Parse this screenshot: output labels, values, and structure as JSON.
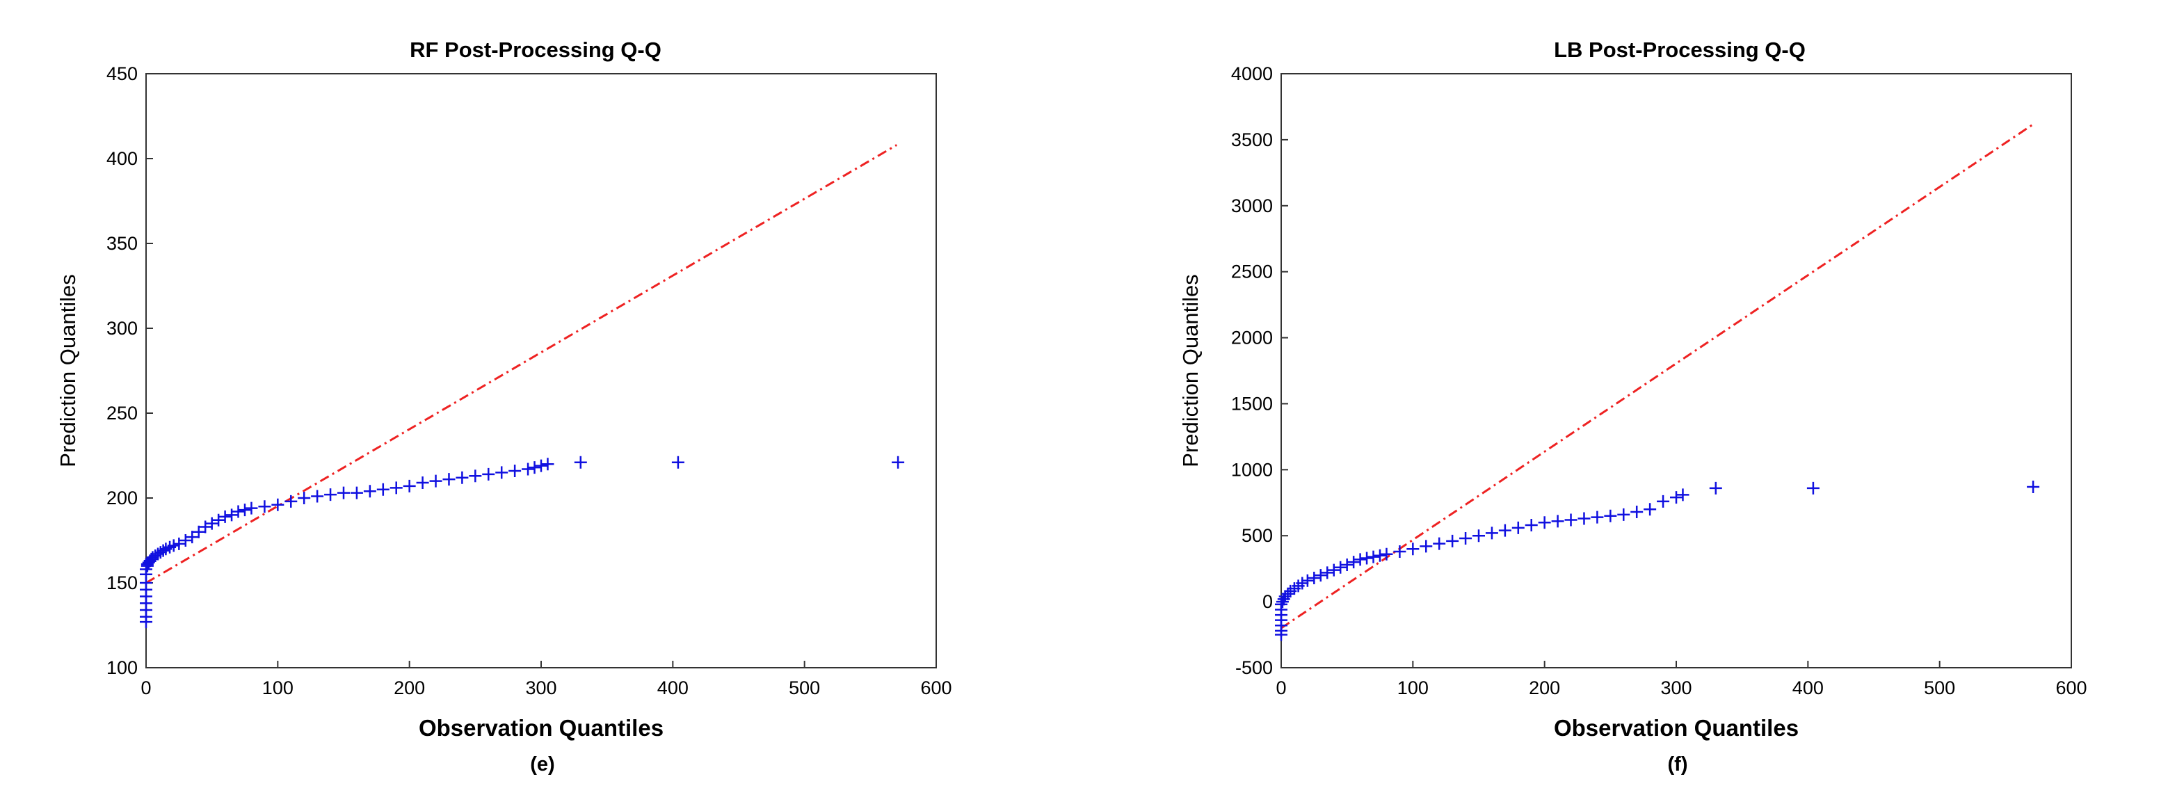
{
  "chart_data": [
    {
      "type": "scatter",
      "title": "RF Post-Processing Q-Q",
      "xlabel": "Observation Quantiles",
      "ylabel": "Prediction Quantiles",
      "caption": "(e)",
      "xlim": [
        0,
        600
      ],
      "ylim": [
        100,
        450
      ],
      "xticks": [
        0,
        100,
        200,
        300,
        400,
        500,
        600
      ],
      "yticks": [
        100,
        150,
        200,
        250,
        300,
        350,
        400,
        450
      ],
      "grid": false,
      "marker": "+",
      "marker_color": "#1010e0",
      "reference_line": {
        "style": "dash-dot",
        "color": "#ee2222",
        "from": [
          0,
          150
        ],
        "to": [
          570,
          408
        ]
      },
      "series": [
        {
          "x": [
            0,
            0,
            0,
            0,
            0,
            0,
            0,
            0,
            0,
            1,
            1,
            2,
            3,
            4,
            5,
            7,
            9,
            11,
            13,
            15,
            18,
            21,
            25,
            30,
            35,
            40,
            45,
            50,
            55,
            60,
            65,
            70,
            75,
            80,
            90,
            100,
            110,
            120,
            130,
            140,
            150,
            160,
            170,
            180,
            190,
            200,
            210,
            220,
            230,
            240,
            250,
            260,
            270,
            280,
            290,
            295,
            300,
            305,
            330,
            404,
            571
          ],
          "y": [
            127,
            130,
            134,
            138,
            142,
            146,
            150,
            155,
            158,
            160,
            161,
            162,
            163,
            164,
            165,
            166,
            167,
            168,
            169,
            170,
            171,
            172,
            173,
            175,
            177,
            180,
            183,
            185,
            187,
            189,
            190,
            192,
            193,
            194,
            195,
            196,
            198,
            200,
            201,
            202,
            203,
            203,
            204,
            205,
            206,
            207,
            209,
            210,
            211,
            212,
            213,
            214,
            215,
            216,
            217,
            218,
            219,
            220,
            221,
            221,
            221
          ]
        }
      ]
    },
    {
      "type": "scatter",
      "title": "LB Post-Processing Q-Q",
      "xlabel": "Observation Quantiles",
      "ylabel": "Prediction Quantiles",
      "caption": "(f)",
      "xlim": [
        0,
        600
      ],
      "ylim": [
        -500,
        4000
      ],
      "xticks": [
        0,
        100,
        200,
        300,
        400,
        500,
        600
      ],
      "yticks": [
        -500,
        0,
        500,
        1000,
        1500,
        2000,
        2500,
        3000,
        3500,
        4000
      ],
      "grid": false,
      "marker": "+",
      "marker_color": "#1010e0",
      "reference_line": {
        "style": "dash-dot",
        "color": "#ee2222",
        "from": [
          0,
          -200
        ],
        "to": [
          570,
          3610
        ]
      },
      "series": [
        {
          "x": [
            0,
            0,
            0,
            0,
            0,
            0,
            0,
            1,
            2,
            3,
            5,
            7,
            10,
            13,
            16,
            20,
            25,
            30,
            35,
            40,
            45,
            50,
            55,
            60,
            65,
            70,
            75,
            80,
            90,
            100,
            110,
            120,
            130,
            140,
            150,
            160,
            170,
            180,
            190,
            200,
            210,
            220,
            230,
            240,
            250,
            260,
            270,
            280,
            290,
            300,
            305,
            330,
            404,
            571
          ],
          "y": [
            -250,
            -220,
            -180,
            -140,
            -100,
            -60,
            -20,
            0,
            20,
            40,
            60,
            80,
            100,
            120,
            140,
            160,
            180,
            200,
            220,
            240,
            260,
            280,
            300,
            320,
            330,
            340,
            350,
            360,
            380,
            400,
            420,
            440,
            460,
            480,
            500,
            520,
            540,
            560,
            580,
            600,
            610,
            620,
            630,
            640,
            650,
            660,
            680,
            700,
            760,
            790,
            810,
            860,
            860,
            870
          ]
        }
      ]
    }
  ]
}
